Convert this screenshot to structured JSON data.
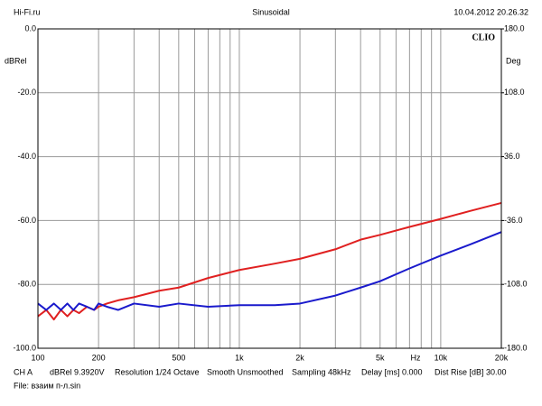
{
  "header": {
    "left": "Hi-Fi.ru",
    "center": "Sinusoidal",
    "right": "10.04.2012 20.26.32"
  },
  "chart_data": {
    "type": "line",
    "brand": "CLIO",
    "y_label": "dBRel",
    "y2_label": "Deg",
    "x_unit": "Hz",
    "log_x": true,
    "grid": true,
    "xlim": [
      100,
      20000
    ],
    "xticks": [
      100,
      200,
      500,
      {
        "value": 1000,
        "label": "1k"
      },
      {
        "value": 2000,
        "label": "2k"
      },
      {
        "value": 5000,
        "label": "5k"
      },
      {
        "value": 10000,
        "label": "10k"
      },
      {
        "value": 20000,
        "label": "20k"
      }
    ],
    "xgrid": [
      300,
      400,
      600,
      700,
      800,
      900,
      3000,
      4000,
      6000,
      7000,
      8000,
      9000
    ],
    "ylim": [
      -100,
      0
    ],
    "yticks": [
      {
        "value": 0,
        "label": "0.0"
      },
      {
        "value": -20,
        "label": "-20.0"
      },
      {
        "value": -40,
        "label": "-40.0"
      },
      {
        "value": -60,
        "label": "-60.0"
      },
      {
        "value": -80,
        "label": "-80.0"
      },
      {
        "value": -100,
        "label": "-100.0"
      }
    ],
    "y2lim": [
      -180,
      180
    ],
    "y2ticks": [
      {
        "value": 180,
        "label": "180.0"
      },
      {
        "value": 108,
        "label": "108.0"
      },
      {
        "value": 36,
        "label": "36.0"
      },
      {
        "value": -36,
        "label": "-36.0"
      },
      {
        "value": -108,
        "label": "-108.0"
      },
      {
        "value": -180,
        "label": "-180.0"
      }
    ],
    "x": [
      100,
      110,
      120,
      130,
      140,
      150,
      160,
      175,
      190,
      200,
      220,
      250,
      300,
      400,
      500,
      700,
      1000,
      1500,
      2000,
      3000,
      4000,
      5000,
      7000,
      10000,
      14000,
      20000
    ],
    "series": [
      {
        "color": "#e02020",
        "values": [
          -90,
          -88,
          -91,
          -88,
          -90,
          -88,
          -89,
          -87,
          -88,
          -87,
          -86,
          -85,
          -84,
          -82,
          -81,
          -78,
          -75.5,
          -73.5,
          -72,
          -69,
          -66,
          -64.5,
          -62,
          -59.5,
          -57,
          -54.5
        ]
      },
      {
        "color": "#1a1acc",
        "values": [
          -86,
          -88,
          -86,
          -88,
          -86,
          -88,
          -86,
          -87,
          -88,
          -86,
          -87,
          -88,
          -86,
          -87,
          -86,
          -87,
          -86.5,
          -86.5,
          -86,
          -83.5,
          -81,
          -79,
          -75,
          -71,
          -67.5,
          -63.6
        ]
      }
    ]
  },
  "footer": {
    "items": [
      "CH A",
      "dBRel 9.3920V",
      "Resolution 1/24 Octave",
      "Smooth Unsmoothed",
      "Sampling 48kHz",
      "Delay [ms] 0.000",
      "Dist Rise [dB] 30.00"
    ],
    "file": "File: взаим п-л.sin"
  }
}
